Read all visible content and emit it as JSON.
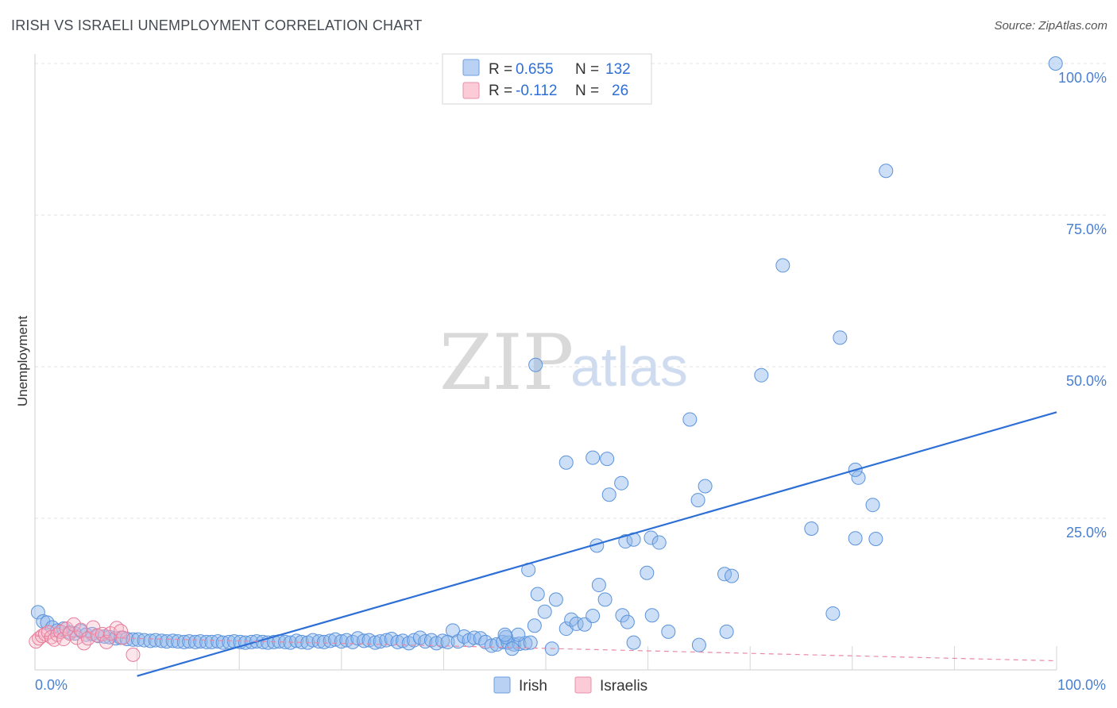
{
  "title": "IRISH VS ISRAELI UNEMPLOYMENT CORRELATION CHART",
  "source": "Source: ZipAtlas.com",
  "watermark": {
    "zip": "ZIP",
    "atlas": "atlas"
  },
  "legend": {
    "rows": [
      {
        "r_label": "R = ",
        "r_value": "0.655",
        "n_label": "N = ",
        "n_value": "132"
      },
      {
        "r_label": "R = ",
        "r_value": "-0.112",
        "n_label": "N = ",
        "n_value": "26"
      }
    ]
  },
  "chart_data": {
    "type": "scatter",
    "title": "IRISH VS ISRAELI UNEMPLOYMENT CORRELATION CHART",
    "xlabel": "",
    "ylabel": "Unemployment",
    "xlim": [
      0,
      100
    ],
    "ylim": [
      0,
      100
    ],
    "x_tick_labels": {
      "left": "0.0%",
      "right": "100.0%"
    },
    "y_ticks": [
      {
        "value": 25,
        "label": "25.0%"
      },
      {
        "value": 50,
        "label": "50.0%"
      },
      {
        "value": 75,
        "label": "75.0%"
      },
      {
        "value": 100,
        "label": "100.0%"
      }
    ],
    "series": [
      {
        "name": "Irish",
        "color": "#8fb8ec",
        "stroke": "#5b93dc",
        "r": 0.655,
        "n": 132,
        "trend": {
          "x0": 10.0,
          "y0": -1.0,
          "x1": 100.0,
          "y1": 42.5
        },
        "points": [
          [
            0.3,
            9.5
          ],
          [
            0.8,
            8.0
          ],
          [
            1.2,
            7.8
          ],
          [
            1.7,
            7.0
          ],
          [
            2.2,
            6.5
          ],
          [
            2.8,
            6.8
          ],
          [
            3.4,
            6.2
          ],
          [
            3.9,
            6.0
          ],
          [
            4.5,
            6.4
          ],
          [
            5.0,
            5.8
          ],
          [
            5.6,
            5.9
          ],
          [
            6.2,
            5.6
          ],
          [
            6.8,
            5.5
          ],
          [
            7.3,
            5.4
          ],
          [
            7.9,
            5.2
          ],
          [
            8.4,
            5.3
          ],
          [
            9.0,
            5.1
          ],
          [
            9.6,
            5.0
          ],
          [
            10.1,
            5.0
          ],
          [
            10.7,
            4.9
          ],
          [
            11.3,
            4.8
          ],
          [
            11.8,
            4.9
          ],
          [
            12.4,
            4.8
          ],
          [
            12.9,
            4.7
          ],
          [
            13.5,
            4.8
          ],
          [
            14.0,
            4.7
          ],
          [
            14.6,
            4.6
          ],
          [
            15.1,
            4.7
          ],
          [
            15.7,
            4.6
          ],
          [
            16.2,
            4.7
          ],
          [
            16.8,
            4.6
          ],
          [
            17.3,
            4.6
          ],
          [
            17.9,
            4.7
          ],
          [
            18.4,
            4.5
          ],
          [
            19.0,
            4.6
          ],
          [
            19.5,
            4.7
          ],
          [
            20.1,
            4.6
          ],
          [
            20.6,
            4.5
          ],
          [
            21.2,
            4.6
          ],
          [
            21.7,
            4.7
          ],
          [
            22.3,
            4.6
          ],
          [
            22.8,
            4.5
          ],
          [
            23.4,
            4.6
          ],
          [
            23.9,
            4.7
          ],
          [
            24.5,
            4.6
          ],
          [
            25.0,
            4.5
          ],
          [
            25.6,
            4.8
          ],
          [
            26.1,
            4.6
          ],
          [
            26.7,
            4.5
          ],
          [
            27.2,
            4.9
          ],
          [
            27.8,
            4.7
          ],
          [
            28.3,
            4.6
          ],
          [
            28.9,
            4.8
          ],
          [
            29.4,
            5.0
          ],
          [
            30.0,
            4.7
          ],
          [
            30.5,
            4.9
          ],
          [
            31.1,
            4.6
          ],
          [
            31.6,
            5.2
          ],
          [
            32.2,
            4.8
          ],
          [
            32.7,
            4.9
          ],
          [
            33.3,
            4.5
          ],
          [
            33.8,
            4.7
          ],
          [
            34.4,
            4.9
          ],
          [
            34.9,
            5.1
          ],
          [
            35.5,
            4.6
          ],
          [
            36.0,
            4.8
          ],
          [
            36.6,
            4.4
          ],
          [
            37.1,
            4.9
          ],
          [
            37.7,
            5.3
          ],
          [
            38.2,
            4.7
          ],
          [
            38.8,
            4.9
          ],
          [
            39.3,
            4.4
          ],
          [
            39.9,
            4.8
          ],
          [
            40.4,
            4.6
          ],
          [
            40.9,
            6.5
          ],
          [
            41.4,
            4.7
          ],
          [
            42.0,
            5.5
          ],
          [
            42.5,
            4.9
          ],
          [
            43.0,
            5.3
          ],
          [
            43.6,
            5.2
          ],
          [
            44.1,
            4.6
          ],
          [
            44.7,
            4.0
          ],
          [
            45.2,
            4.2
          ],
          [
            45.8,
            4.6
          ],
          [
            46.3,
            4.5
          ],
          [
            46.9,
            4.2
          ],
          [
            47.4,
            4.3
          ],
          [
            48.0,
            4.4
          ],
          [
            48.5,
            4.5
          ],
          [
            47.3,
            5.8
          ],
          [
            46.1,
            5.4
          ],
          [
            48.9,
            7.3
          ],
          [
            50.6,
            3.5
          ],
          [
            49.9,
            9.6
          ],
          [
            49.2,
            12.5
          ],
          [
            48.3,
            16.5
          ],
          [
            46.0,
            5.8
          ],
          [
            46.7,
            3.5
          ],
          [
            51.0,
            11.6
          ],
          [
            52.0,
            6.8
          ],
          [
            52.5,
            8.3
          ],
          [
            53.0,
            7.6
          ],
          [
            53.8,
            7.5
          ],
          [
            54.6,
            8.9
          ],
          [
            55.2,
            14.0
          ],
          [
            55.0,
            20.5
          ],
          [
            57.8,
            21.2
          ],
          [
            52.0,
            34.2
          ],
          [
            54.6,
            35.0
          ],
          [
            56.0,
            34.8
          ],
          [
            57.4,
            30.8
          ],
          [
            56.2,
            28.9
          ],
          [
            49.0,
            50.3
          ],
          [
            55.8,
            11.6
          ],
          [
            57.5,
            9.0
          ],
          [
            58.6,
            4.5
          ],
          [
            62.0,
            6.3
          ],
          [
            60.3,
            21.8
          ],
          [
            59.9,
            16.0
          ],
          [
            58.6,
            21.5
          ],
          [
            61.1,
            21.0
          ],
          [
            64.9,
            28.0
          ],
          [
            64.1,
            41.3
          ],
          [
            65.6,
            30.3
          ],
          [
            67.5,
            15.8
          ],
          [
            68.2,
            15.5
          ],
          [
            67.7,
            6.3
          ],
          [
            65.0,
            4.1
          ],
          [
            71.1,
            48.6
          ],
          [
            73.2,
            66.7
          ],
          [
            76.0,
            23.3
          ],
          [
            78.1,
            9.3
          ],
          [
            78.8,
            54.8
          ],
          [
            80.6,
            31.7
          ],
          [
            80.3,
            33.0
          ],
          [
            82.0,
            27.2
          ],
          [
            83.3,
            82.3
          ],
          [
            80.3,
            21.7
          ],
          [
            99.9,
            100.0
          ],
          [
            82.3,
            21.6
          ],
          [
            60.4,
            9.0
          ],
          [
            58.0,
            7.9
          ]
        ]
      },
      {
        "name": "Israelis",
        "color": "#f7b6c8",
        "stroke": "#e77c9b",
        "r": -0.112,
        "n": 26,
        "trend": {
          "x0": 0.0,
          "y0": 5.6,
          "x1": 100.0,
          "y1": 1.5
        },
        "points": [
          [
            0.1,
            4.7
          ],
          [
            0.4,
            5.2
          ],
          [
            0.7,
            5.6
          ],
          [
            1.0,
            5.9
          ],
          [
            1.3,
            6.2
          ],
          [
            1.6,
            5.4
          ],
          [
            1.9,
            5.0
          ],
          [
            2.2,
            5.8
          ],
          [
            2.5,
            6.3
          ],
          [
            2.8,
            5.1
          ],
          [
            3.1,
            6.8
          ],
          [
            3.4,
            6.0
          ],
          [
            3.8,
            7.5
          ],
          [
            4.1,
            5.3
          ],
          [
            4.5,
            6.6
          ],
          [
            4.8,
            4.4
          ],
          [
            5.2,
            5.2
          ],
          [
            5.7,
            7.0
          ],
          [
            6.1,
            5.7
          ],
          [
            6.6,
            5.9
          ],
          [
            7.0,
            4.6
          ],
          [
            7.4,
            6.0
          ],
          [
            8.0,
            6.9
          ],
          [
            8.4,
            6.4
          ],
          [
            8.6,
            5.3
          ],
          [
            9.6,
            2.5
          ]
        ]
      }
    ]
  },
  "bottom_legend": [
    {
      "label": "Irish"
    },
    {
      "label": "Israelis"
    }
  ]
}
